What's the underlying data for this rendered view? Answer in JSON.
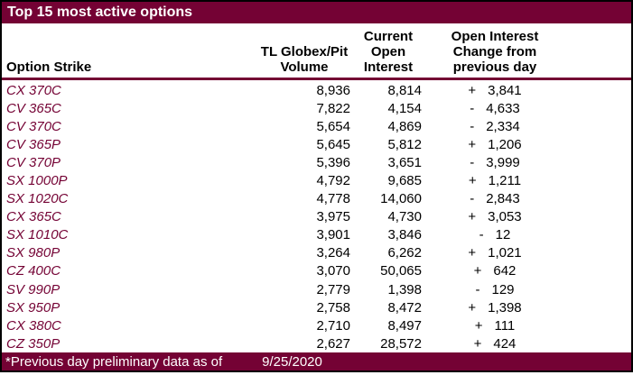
{
  "title": "Top 15 most active options",
  "colors": {
    "maroon": "#740234",
    "body_text": "#000000",
    "strike_text": "#740234",
    "bar_text": "#ffffff"
  },
  "columns": {
    "option_strike": "Option Strike",
    "volume_lines": [
      "TL Globex/Pit",
      "Volume"
    ],
    "open_interest_lines": [
      "Current",
      "Open",
      "Interest"
    ],
    "change_lines": [
      "Open Interest",
      "Change from",
      "previous day"
    ]
  },
  "rows": [
    {
      "strike": "CX 370C",
      "volume": "8,936",
      "open_interest": "8,814",
      "change_sign": "+",
      "change_value": "3,841"
    },
    {
      "strike": "CV 365C",
      "volume": "7,822",
      "open_interest": "4,154",
      "change_sign": "-",
      "change_value": "4,633"
    },
    {
      "strike": "CV 370C",
      "volume": "5,654",
      "open_interest": "4,869",
      "change_sign": "-",
      "change_value": "2,334"
    },
    {
      "strike": "CV 365P",
      "volume": "5,645",
      "open_interest": "5,812",
      "change_sign": "+",
      "change_value": "1,206"
    },
    {
      "strike": "CV 370P",
      "volume": "5,396",
      "open_interest": "3,651",
      "change_sign": "-",
      "change_value": "3,999"
    },
    {
      "strike": "SX 1000P",
      "volume": "4,792",
      "open_interest": "9,685",
      "change_sign": "+",
      "change_value": "1,211"
    },
    {
      "strike": "SX 1020C",
      "volume": "4,778",
      "open_interest": "14,060",
      "change_sign": "-",
      "change_value": "2,843"
    },
    {
      "strike": "CX 365C",
      "volume": "3,975",
      "open_interest": "4,730",
      "change_sign": "+",
      "change_value": "3,053"
    },
    {
      "strike": "SX 1010C",
      "volume": "3,901",
      "open_interest": "3,846",
      "change_sign": "-",
      "change_value": "12"
    },
    {
      "strike": "SX 980P",
      "volume": "3,264",
      "open_interest": "6,262",
      "change_sign": "+",
      "change_value": "1,021"
    },
    {
      "strike": "CZ 400C",
      "volume": "3,070",
      "open_interest": "50,065",
      "change_sign": "+",
      "change_value": "642"
    },
    {
      "strike": "SV 990P",
      "volume": "2,779",
      "open_interest": "1,398",
      "change_sign": "-",
      "change_value": "129"
    },
    {
      "strike": "SX 950P",
      "volume": "2,758",
      "open_interest": "8,472",
      "change_sign": "+",
      "change_value": "1,398"
    },
    {
      "strike": "CX 380C",
      "volume": "2,710",
      "open_interest": "8,497",
      "change_sign": "+",
      "change_value": "111"
    },
    {
      "strike": "CZ 350P",
      "volume": "2,627",
      "open_interest": "28,572",
      "change_sign": "+",
      "change_value": "424"
    }
  ],
  "footer": {
    "note": "*Previous day preliminary data as of",
    "date": "9/25/2020"
  }
}
